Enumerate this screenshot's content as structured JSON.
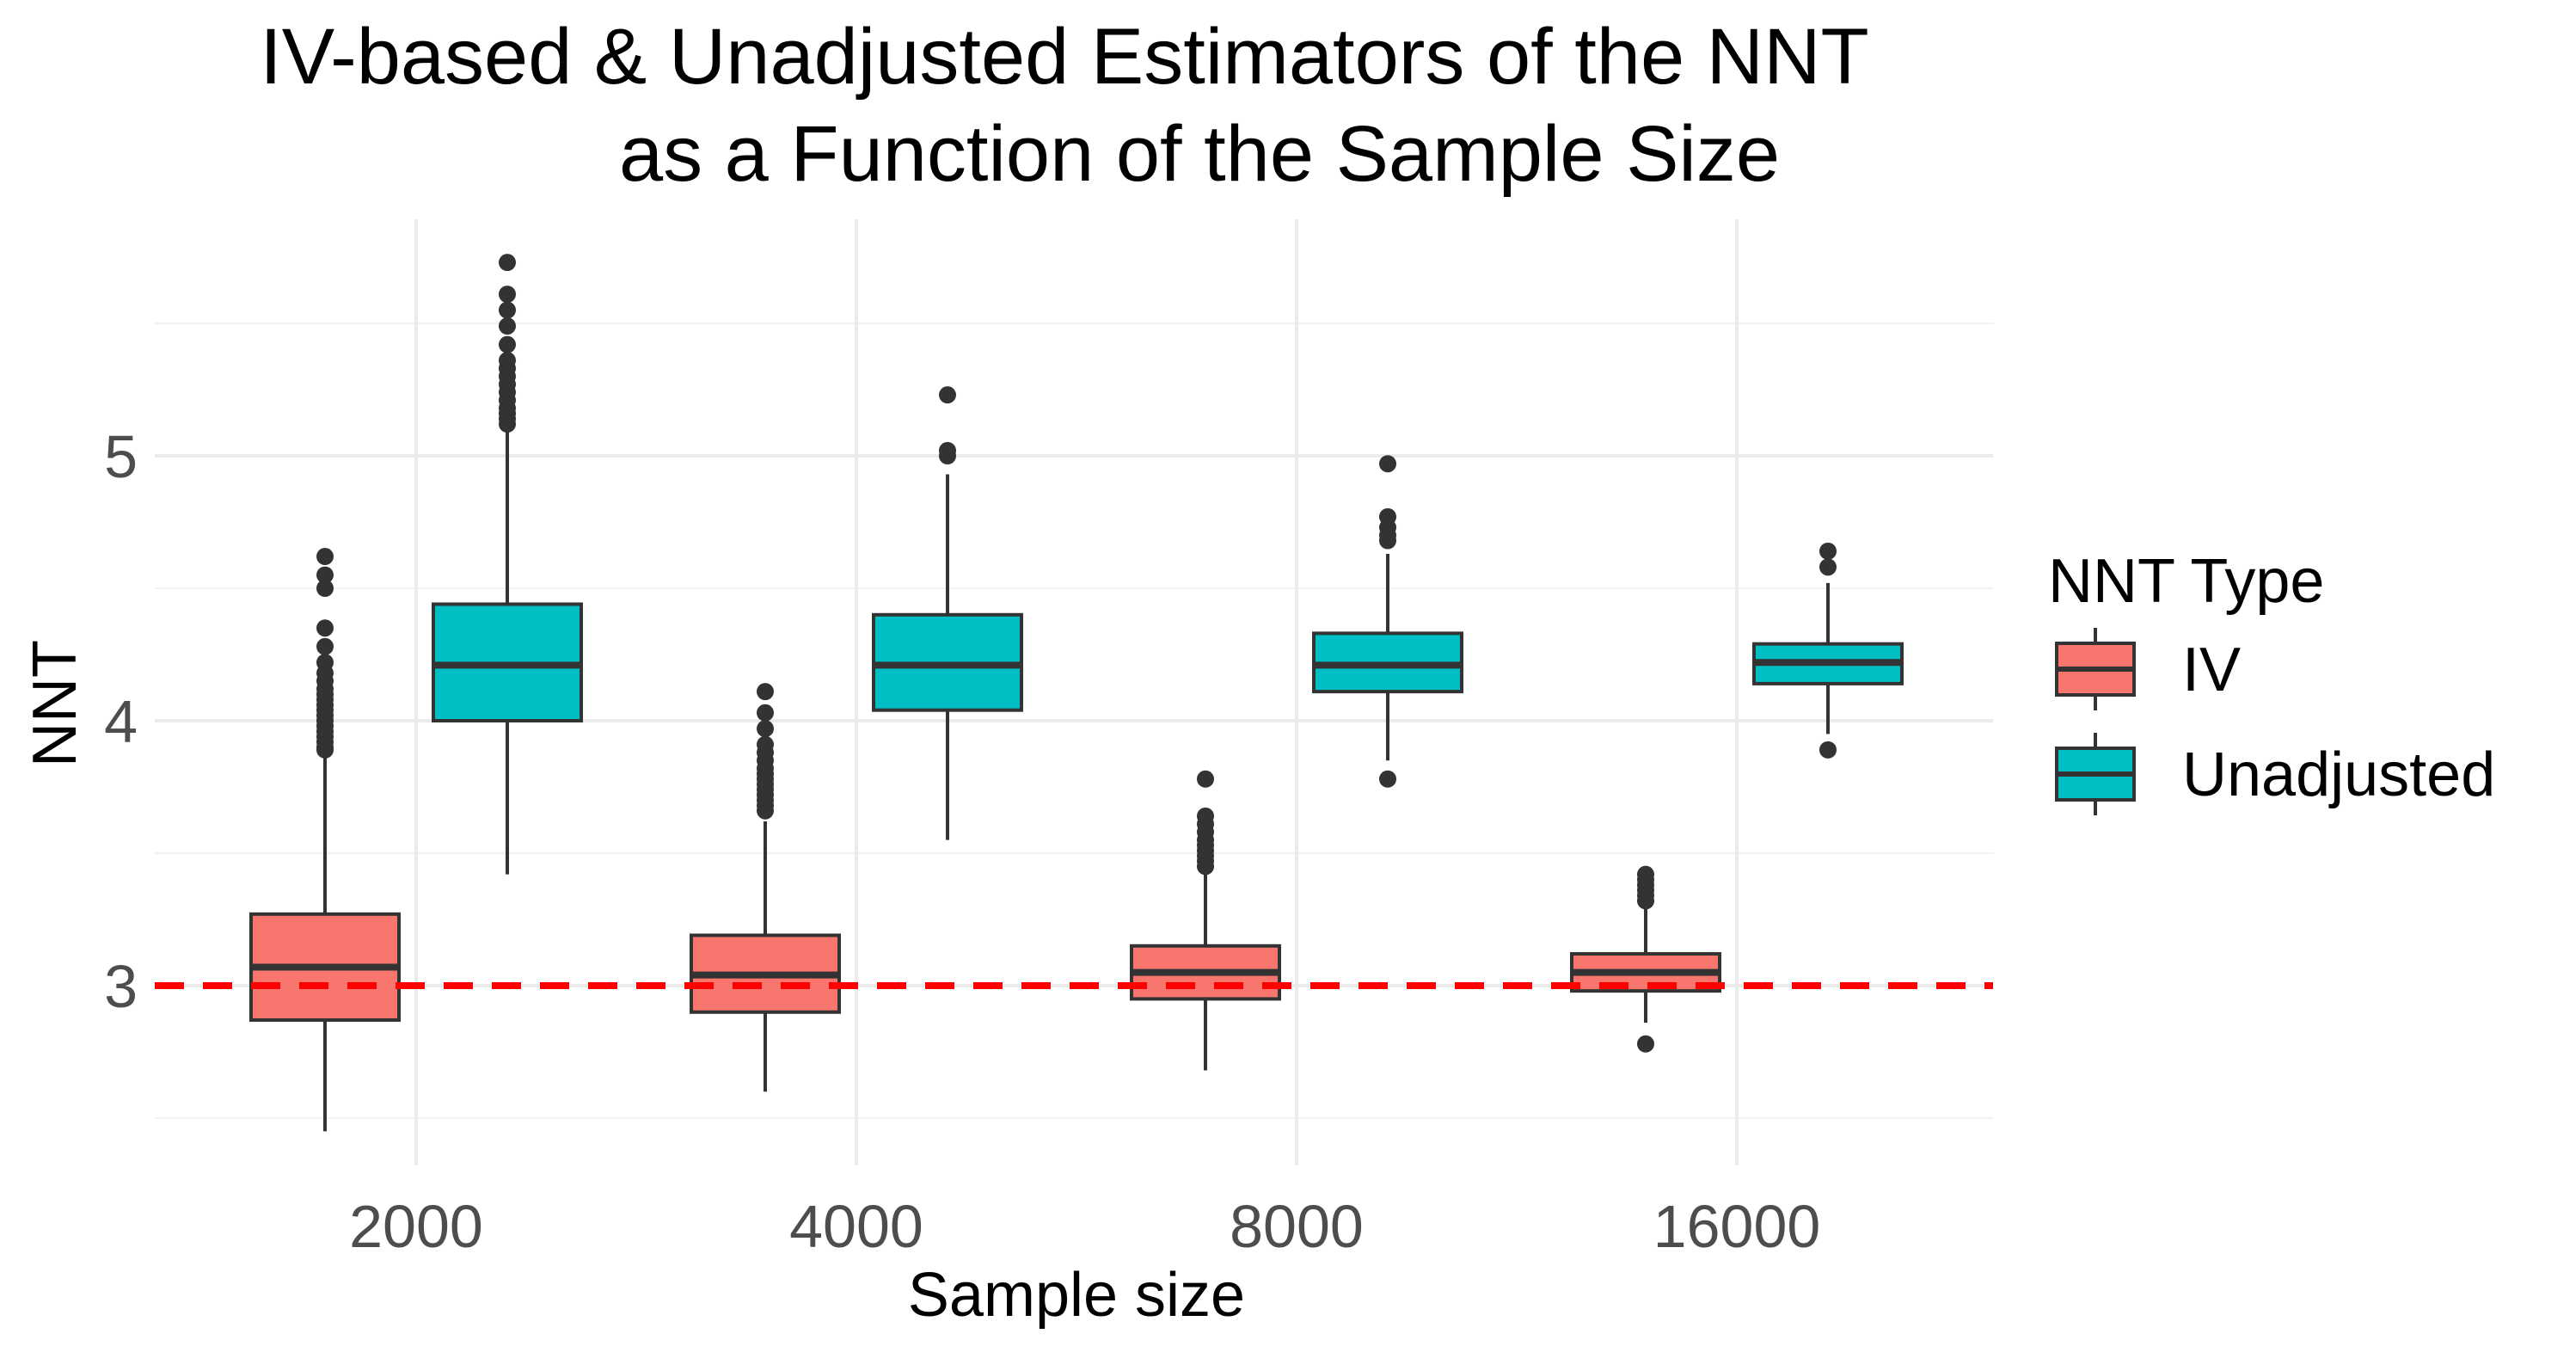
{
  "chart_data": {
    "type": "boxplot",
    "title_lines": [
      "IV-based & Unadjusted Estimators of the NNT",
      "as a Function of the Sample Size"
    ],
    "xlabel": "Sample size",
    "ylabel": "NNT",
    "categories": [
      "2000",
      "4000",
      "8000",
      "16000"
    ],
    "y_ticks": [
      3,
      4,
      5
    ],
    "y_tick_labels": [
      "3",
      "4",
      "5"
    ],
    "ylim": [
      2.35,
      5.95
    ],
    "grid": true,
    "reference_line": {
      "value": 3.0,
      "color": "#FF0000",
      "style": "dashed"
    },
    "legend": {
      "title": "NNT Type",
      "position": "right",
      "entries": [
        {
          "name": "IV",
          "color": "#F8766D"
        },
        {
          "name": "Unadjusted",
          "color": "#00BFC4"
        }
      ]
    },
    "series": [
      {
        "name": "IV",
        "color": "#F8766D",
        "boxes": [
          {
            "category": "2000",
            "lower_whisker": 2.45,
            "q1": 2.87,
            "median": 3.07,
            "q3": 3.27,
            "upper_whisker": 3.88,
            "outliers": [
              3.89,
              3.9,
              3.92,
              3.94,
              3.96,
              3.98,
              4.0,
              4.02,
              4.04,
              4.06,
              4.08,
              4.1,
              4.12,
              4.15,
              4.18,
              4.22,
              4.28,
              4.35,
              4.5,
              4.55,
              4.62
            ]
          },
          {
            "category": "4000",
            "lower_whisker": 2.6,
            "q1": 2.9,
            "median": 3.04,
            "q3": 3.19,
            "upper_whisker": 3.62,
            "outliers": [
              3.66,
              3.68,
              3.7,
              3.72,
              3.74,
              3.76,
              3.78,
              3.8,
              3.82,
              3.85,
              3.88,
              3.91,
              3.97,
              4.03,
              4.11
            ]
          },
          {
            "category": "8000",
            "lower_whisker": 2.68,
            "q1": 2.95,
            "median": 3.05,
            "q3": 3.15,
            "upper_whisker": 3.44,
            "outliers": [
              3.45,
              3.47,
              3.49,
              3.51,
              3.53,
              3.55,
              3.58,
              3.61,
              3.64,
              3.78
            ]
          },
          {
            "category": "16000",
            "lower_whisker": 2.86,
            "q1": 2.98,
            "median": 3.05,
            "q3": 3.12,
            "upper_whisker": 3.3,
            "outliers": [
              2.78,
              3.32,
              3.34,
              3.36,
              3.38,
              3.4,
              3.42
            ]
          }
        ]
      },
      {
        "name": "Unadjusted",
        "color": "#00BFC4",
        "boxes": [
          {
            "category": "2000",
            "lower_whisker": 3.42,
            "q1": 4.0,
            "median": 4.21,
            "q3": 4.44,
            "upper_whisker": 5.1,
            "outliers": [
              5.12,
              5.14,
              5.16,
              5.18,
              5.21,
              5.24,
              5.27,
              5.3,
              5.33,
              5.36,
              5.42,
              5.49,
              5.55,
              5.61,
              5.73
            ]
          },
          {
            "category": "4000",
            "lower_whisker": 3.55,
            "q1": 4.04,
            "median": 4.21,
            "q3": 4.4,
            "upper_whisker": 4.93,
            "outliers": [
              5.0,
              5.02,
              5.23
            ]
          },
          {
            "category": "8000",
            "lower_whisker": 3.85,
            "q1": 4.11,
            "median": 4.21,
            "q3": 4.33,
            "upper_whisker": 4.63,
            "outliers": [
              3.78,
              4.68,
              4.7,
              4.73,
              4.77,
              4.97
            ]
          },
          {
            "category": "16000",
            "lower_whisker": 3.95,
            "q1": 4.14,
            "median": 4.22,
            "q3": 4.29,
            "upper_whisker": 4.52,
            "outliers": [
              3.89,
              4.58,
              4.64
            ]
          }
        ]
      }
    ]
  }
}
